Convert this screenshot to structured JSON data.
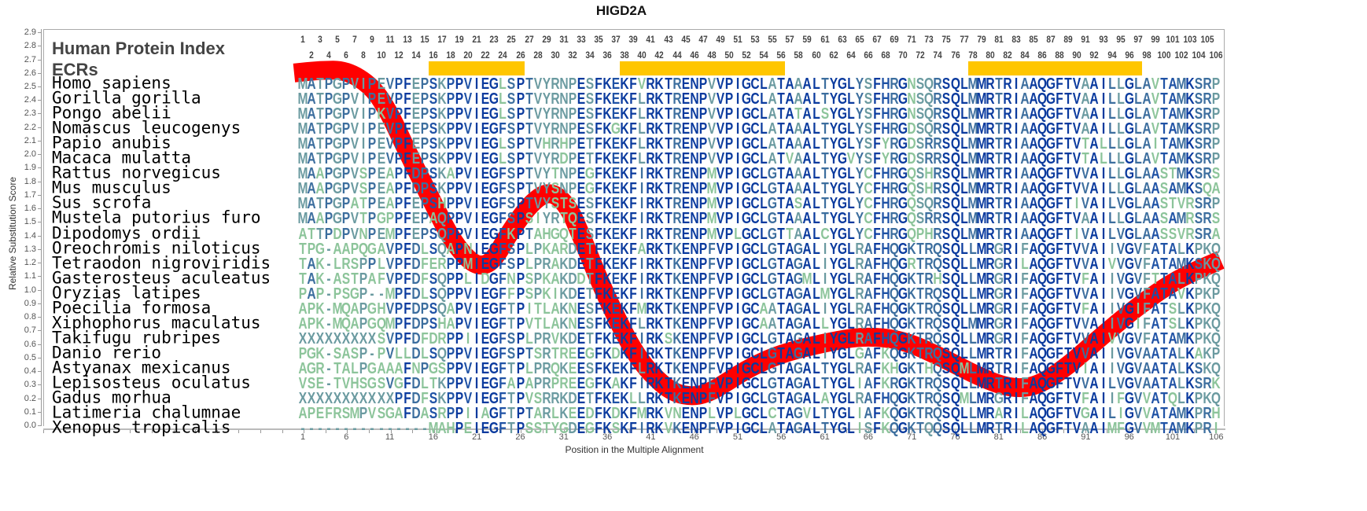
{
  "title": "HIGD2A",
  "header": {
    "protein_index_label": "Human Protein Index",
    "ecr_label": "ECRs"
  },
  "colors": {
    "curve": "#ff0000",
    "ecr": "#ffc600",
    "conserved": "#0a3a9e",
    "high": "#1f52a5",
    "mid": "#3c6e9e",
    "low": "#6a9aa0",
    "variable": "#8cc49a"
  },
  "ecrs": [
    [
      16,
      26
    ],
    [
      38,
      56
    ],
    [
      78,
      97
    ]
  ],
  "alignment": [
    {
      "species": "Homo sapiens",
      "seq": "MATPGPVIPEVPFEPSKPPVIEGLSPTVYRNPESFKEKFVRKTRENPVVPIGCLATAAALTYGLYSFHRGNSQRSQLMMRTRIAAQGFTVAAILLGLAVTAMKSRP"
    },
    {
      "species": "Gorilla gorilla",
      "seq": "MATPGPVIPEVPFEPSKPPVIEGLSPTVYRNPESFKEKFLRKTRENPVVPIGCLATAAALTYGLYSFHRGNSQRSQLMMRTRIAAQGFTVAAILLGLAVTAMKSRP"
    },
    {
      "species": "Pongo abelii",
      "seq": "MATPGPVIPKVPFEPSKPPVIEGLSPTVYRNPESFKEKFLRKTRENPVVPIGCLATATALSYGLYSFHRGNSQRSQLMMRTRIAAQGFTVAAILLGLAVTAMKSRP"
    },
    {
      "species": "Nomascus leucogenys",
      "seq": "MATPGPVIPEVPFEPSKPPVIEGFSPTVYRNPESFKGKFLRKTRENPVVPIGCLATAAALTYGLYSFHRGDSQRSQLMMRTRIAAQGFTVAAILLGLAVTAMKSRP"
    },
    {
      "species": "Papio anubis",
      "seq": "MATPGPVIPEVPFEPSKPPVIEGLSPTVHRHPETFKEKFLRKTRENPVVPIGCLATAAALTYGLYSFYRGDSRRSQLMMRTRIAAQGFTVTALLLGLAITAMKSRP"
    },
    {
      "species": "Macaca mulatta",
      "seq": "MATPGPVIPEVPFEPSKPPVIEGLSPTVYRDPETFKEKFLRKTRENPVVPIGCLATVAALTYGVYSFYRGDSRRSQLMMRTRIAAQGFTVTALLLGLAVTAMKSRP"
    },
    {
      "species": "Rattus norvegicus",
      "seq": "MAAPGPVSPEAPFDPSKAPVIEGFSPTVYTNPEGFKEKFIRKTRENPMVPIGCLGTAAALTYGLYCFHRGQSHRSQLMMRTRIAAQGFTVVAILLGLAASTMKSRS"
    },
    {
      "species": "Mus musculus",
      "seq": "MAAPGPVSPEAPFDPSKPPVIEGFSPTVYSNPEGFKEKFIRKTRENPMVPIGCLGTAAALTYGLYCFHRGQSHRSQLMMRTRIAAQGFTVVAILLGLAASAMKSQA"
    },
    {
      "species": "Sus scrofa",
      "seq": "MATPGPATPEAPFEPSHPPVIEGFSPTVYSTSESFKEKFIRKTRENPMVPIGCLGTASALTYGLYCFHRGQSQRSQLMMRTRIAAQGFTIVAILVGLAASTVRSRP"
    },
    {
      "species": "Mustela putorius furo",
      "seq": "MAAPGPVTPGPPFEPAQPPVIEGFSPSIYRTQESFKEKFIRKTRENPMVPIGCLGTAAALTYGLYCFHRGQSRRSQLMMRTRIAAQGFTVAAILLGLAASAMRSRS"
    },
    {
      "species": "Dipodomys ordii",
      "seq": "ATTPDPVNPEMPFEPSQPPVIEGFKPTAHGQTESFKEKFIRKTRENPMVPLGCLGTTAALCYGLYCFHRGQPHRSQLMMRTRIAAQGFTIVAILVGLAASSVRSRA"
    },
    {
      "species": "Oreochromis niloticus",
      "seq": "TPG-AAPQGAVPFDLSQAPNIEGFSPLPKARDETFKEKFARKTKENPFVPIGCLGTAGALIYGLRAFHQGKTRQSQLLMRGRIFAQGFTVVAIIVGVFATALKPKQ"
    },
    {
      "species": "Tetraodon nigroviridis",
      "seq": "TAK-LRSPPLVPFDFERPPMIEGFSPLPRAKDETFKEKFIRKTKENPFVPIGCLGTAGALIYGLRAFHQGRTRQSQLLMRGRILAQGFTVVAIVVGVFATAMKSKQ"
    },
    {
      "species": "Gasterosteus aculeatus",
      "seq": "TAK-ASTPAFVPFDFSQPPLIDGFNPSPKAKDDTFKEKFIRKTKENPFVPIGCLGTAGMLIYGLRAFHQGKTRHSQLLMRGRIFAQGFTVFAIIVGVFTTALKPKQ"
    },
    {
      "species": "Oryzias latipes",
      "seq": "PAP-PSGP--MPFDLSQPPVIEGFFPSPKIKDETFKEKFIRKTKENPFVPIGCLGTAGALMYGLRAFHQGKTRQSQLLMRGRIFAQGFTVVAIIVGVFATAVKPKP"
    },
    {
      "species": "Poecilia formosa",
      "seq": "APK-MQAPGHVPFDPSQAPVIEGFTPITLAKNESFKEKFMRKTKENPFVPIGCAATAGALIYGLRAFHQGKTRQSQLLMRGRIFAQGFTVFAIIVGIFATSLKPKQ"
    },
    {
      "species": "Xiphophorus maculatus",
      "seq": "APK-MQAPGQMPFDPSHAPVIEGFTPVTLAKNESFKEKFLRKTKENPFVPIGCAATAGALLYGLRAFHQGKTRQSQLMMRGRIFAQGFTVVAIIVGIFATSLKPKQ"
    },
    {
      "species": "Takifugu rubripes",
      "seq": "XXXXXXXXXSVPFDFDRPPIIEGFSPLPRVKDETFKEKFIRKSKENPFVPIGCLGTAGALIYGLRAFHQGKTRQSQLLMRGRIFAQGFTVVAIVVGVFATAMKPKQ"
    },
    {
      "species": "Danio rerio",
      "seq": "PGK-SASP-PVLLDLSQPPVIEGFSPTSRTREEGFKDKFIRKTKENPFVPIGCLGTAGALIYGLGAFKQGKTRQSQLLMRTRIFAQGFTVVAIIVGVAATALKAKP"
    },
    {
      "species": "Astyanax mexicanus",
      "seq": "AGR-TALPGAAAFNPGSPPVIEGFTPLPRQKEESFKEKFLRKTKENPFVPIGCLGTAGALTYGLRAFKHGKTHQSQMLMRTRIFAQGFTVIAIIVGVAATALKSKQ"
    },
    {
      "species": "Lepisosteus oculatus",
      "seq": "VSE-TVHSGSVGFDLTKPPVIEGFAPAPRPREEGFKAKFIRKTKENPFVPIGCLGTAGALTYGLIAFKRGKTRQSQLLMRTRIFAQGFTVVAILVGVAATALKSRK"
    },
    {
      "species": "Gadus morhua",
      "seq": "XXXXXXXXXXXPFDFSKPPVIEGFTPVSRRKDETFKEKLLRKTKENPFVPIGCLGTAGALAYGLRAFHQGKTRQSQMLMRGRIFAQGFTVFAIIFGVVATQLKPKQ"
    },
    {
      "species": "Latimeria chalumnae",
      "seq": "APEFRSMPVSGAFDASRPPIIAGFTPTARLKEEDFKDKFMRKVNENPLVPLGCLCTAGVLTYGLIAFKQGKTRQSQLLMRARILAQGFTVGAILIGVVATAMKPRH"
    },
    {
      "species": "Xenopus tropicalis",
      "seq": "---------------MAHPEIEGFTPSSTYGDEGFKSKFIRKVKENPFVPIGCLATAGALTYGLISFKQGKTQQSQLLMRTRILAQGFTVAAIMFGVVMTAMKPRI"
    }
  ],
  "chart_data": {
    "type": "line",
    "title": "HIGD2A",
    "xlabel": "Position in the Multiple Alignment",
    "ylabel": "Relative Substitution Score",
    "xlim": [
      0,
      106
    ],
    "ylim": [
      0.0,
      2.9
    ],
    "xticks": [
      "1",
      "6",
      "11",
      "16",
      "21",
      "26",
      "31",
      "36",
      "41",
      "46",
      "51",
      "56",
      "61",
      "66",
      "71",
      "76",
      "81",
      "86",
      "91",
      "96",
      "101",
      "106"
    ],
    "yticks": [
      "0.0",
      "0.1",
      "0.2",
      "0.3",
      "0.4",
      "0.5",
      "0.6",
      "0.7",
      "0.8",
      "0.9",
      "1.0",
      "1.1",
      "1.2",
      "1.3",
      "1.4",
      "1.5",
      "1.6",
      "1.7",
      "1.8",
      "1.9",
      "2.0",
      "2.1",
      "2.2",
      "2.3",
      "2.4",
      "2.5",
      "2.6",
      "2.7",
      "2.8",
      "2.9"
    ],
    "series": [
      {
        "name": "Relative Substitution Score",
        "x": [
          0,
          3,
          6,
          9,
          11,
          13,
          15.5,
          18,
          20,
          21.5,
          23,
          25,
          27.5,
          29.5,
          31.5,
          33,
          35,
          37,
          39,
          41,
          43.5,
          46,
          48,
          50,
          52.5,
          56,
          61,
          65.5,
          70,
          74.5,
          79,
          82.5,
          85.5,
          89,
          92.5,
          97,
          101.5,
          106.5
        ],
        "y": [
          2.6,
          2.62,
          2.62,
          2.5,
          2.3,
          2.02,
          1.7,
          1.38,
          1.22,
          1.17,
          1.22,
          1.45,
          1.66,
          1.73,
          1.62,
          1.4,
          1.08,
          0.8,
          0.55,
          0.38,
          0.24,
          0.21,
          0.25,
          0.33,
          0.43,
          0.53,
          0.61,
          0.66,
          0.63,
          0.5,
          0.35,
          0.27,
          0.29,
          0.44,
          0.64,
          0.88,
          1.08,
          1.22
        ]
      }
    ]
  }
}
